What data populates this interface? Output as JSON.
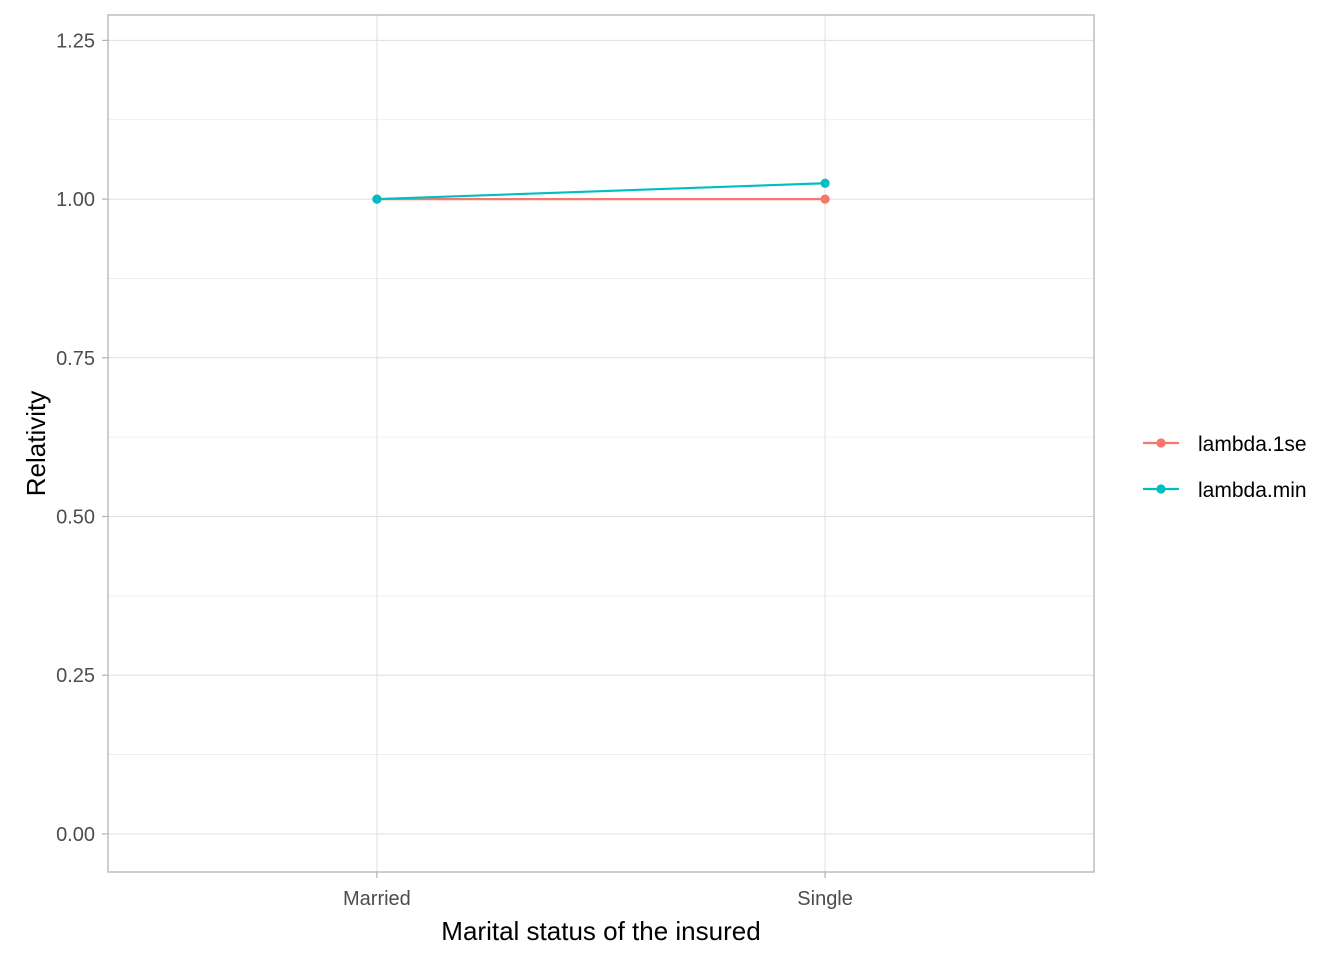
{
  "chart_data": {
    "type": "line",
    "xlabel": "Marital status of the insured",
    "ylabel": "Relativity",
    "categories": [
      "Married",
      "Single"
    ],
    "ylim": [
      -0.06,
      1.29
    ],
    "yticks": [
      0.0,
      0.25,
      0.5,
      0.75,
      1.0,
      1.25
    ],
    "ytick_labels": [
      "0.00",
      "0.25",
      "0.50",
      "0.75",
      "1.00",
      "1.25"
    ],
    "grid": true,
    "legend_position": "right",
    "series": [
      {
        "name": "lambda.1se",
        "color": "#F8766D",
        "values": [
          1.0,
          1.0
        ]
      },
      {
        "name": "lambda.min",
        "color": "#00BFC4",
        "values": [
          1.0,
          1.025
        ]
      }
    ]
  }
}
